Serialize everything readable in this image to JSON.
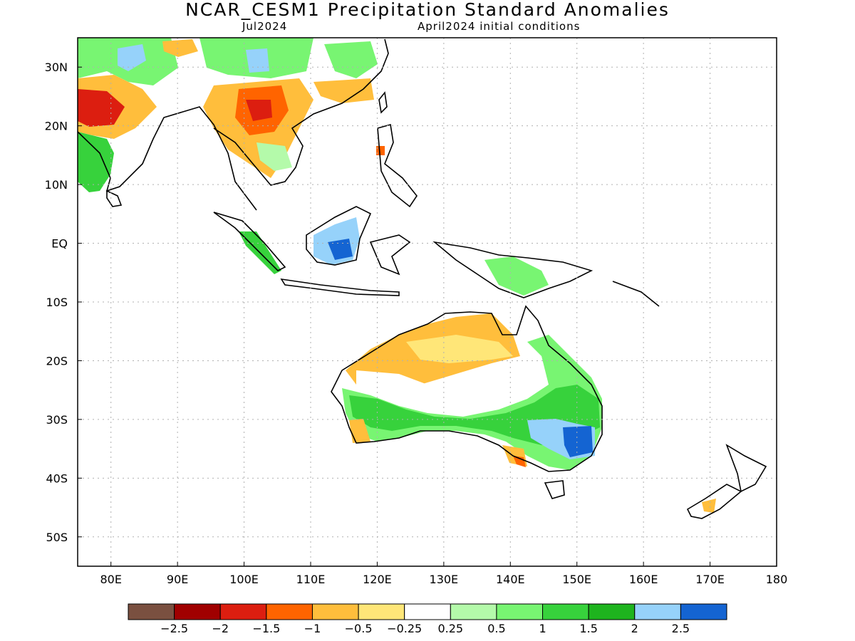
{
  "title": "NCAR_CESM1 Precipitation Standard Anomalies",
  "valid_month": "Jul2024",
  "init_label": "April2024 initial conditions",
  "axes": {
    "lat_ticks": [
      "30N",
      "20N",
      "10N",
      "EQ",
      "10S",
      "20S",
      "30S",
      "40S",
      "50S"
    ],
    "lon_ticks": [
      "80E",
      "90E",
      "100E",
      "110E",
      "120E",
      "130E",
      "140E",
      "150E",
      "160E",
      "170E",
      "180"
    ],
    "lat_values": [
      30,
      20,
      10,
      0,
      -10,
      -20,
      -30,
      -40,
      -50
    ],
    "lon_values": [
      80,
      90,
      100,
      110,
      120,
      130,
      140,
      150,
      160,
      170,
      180
    ],
    "lat_range": [
      -55,
      35
    ],
    "lon_range": [
      75,
      180
    ],
    "grid": "dotted"
  },
  "colorbar": {
    "colors": [
      "#7a5040",
      "#a00000",
      "#dc1e10",
      "#ff6400",
      "#ffbe3c",
      "#ffe678",
      "#ffffff",
      "#b4faaa",
      "#78f572",
      "#37d23c",
      "#1eb41e",
      "#96d2fa",
      "#1464d2"
    ],
    "labels": [
      "−2.5",
      "−2",
      "−1.5",
      "−1",
      "−0.5",
      "−0.25",
      "0.25",
      "0.5",
      "1",
      "1.5",
      "2",
      "2.5"
    ]
  }
}
